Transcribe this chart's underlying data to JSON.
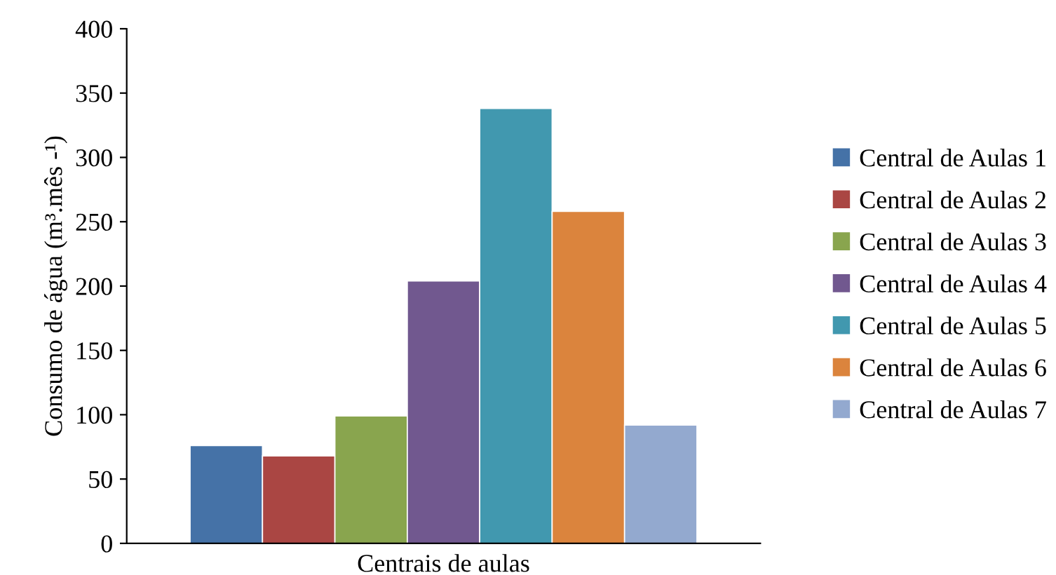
{
  "chart_data": {
    "type": "bar",
    "xlabel": "Centrais de aulas",
    "ylabel": "Consumo de água (m³.mês -¹)",
    "categories": [
      null
    ],
    "ylim": [
      0,
      400
    ],
    "yticks": [
      0,
      50,
      100,
      150,
      200,
      250,
      300,
      350,
      400
    ],
    "grid": false,
    "legend": "right",
    "series": [
      {
        "name": "Central de Aulas 1",
        "color": "#4572a7",
        "values": [
          76
        ]
      },
      {
        "name": "Central de Aulas 2",
        "color": "#aa4643",
        "values": [
          68
        ]
      },
      {
        "name": "Central de Aulas 3",
        "color": "#89a54e",
        "values": [
          99
        ]
      },
      {
        "name": "Central de Aulas 4",
        "color": "#71588f",
        "values": [
          204
        ]
      },
      {
        "name": "Central de Aulas 5",
        "color": "#4198af",
        "values": [
          338
        ]
      },
      {
        "name": "Central de Aulas 6",
        "color": "#db843d",
        "values": [
          258
        ]
      },
      {
        "name": "Central de Aulas 7",
        "color": "#93a9cf",
        "values": [
          92
        ]
      }
    ]
  }
}
